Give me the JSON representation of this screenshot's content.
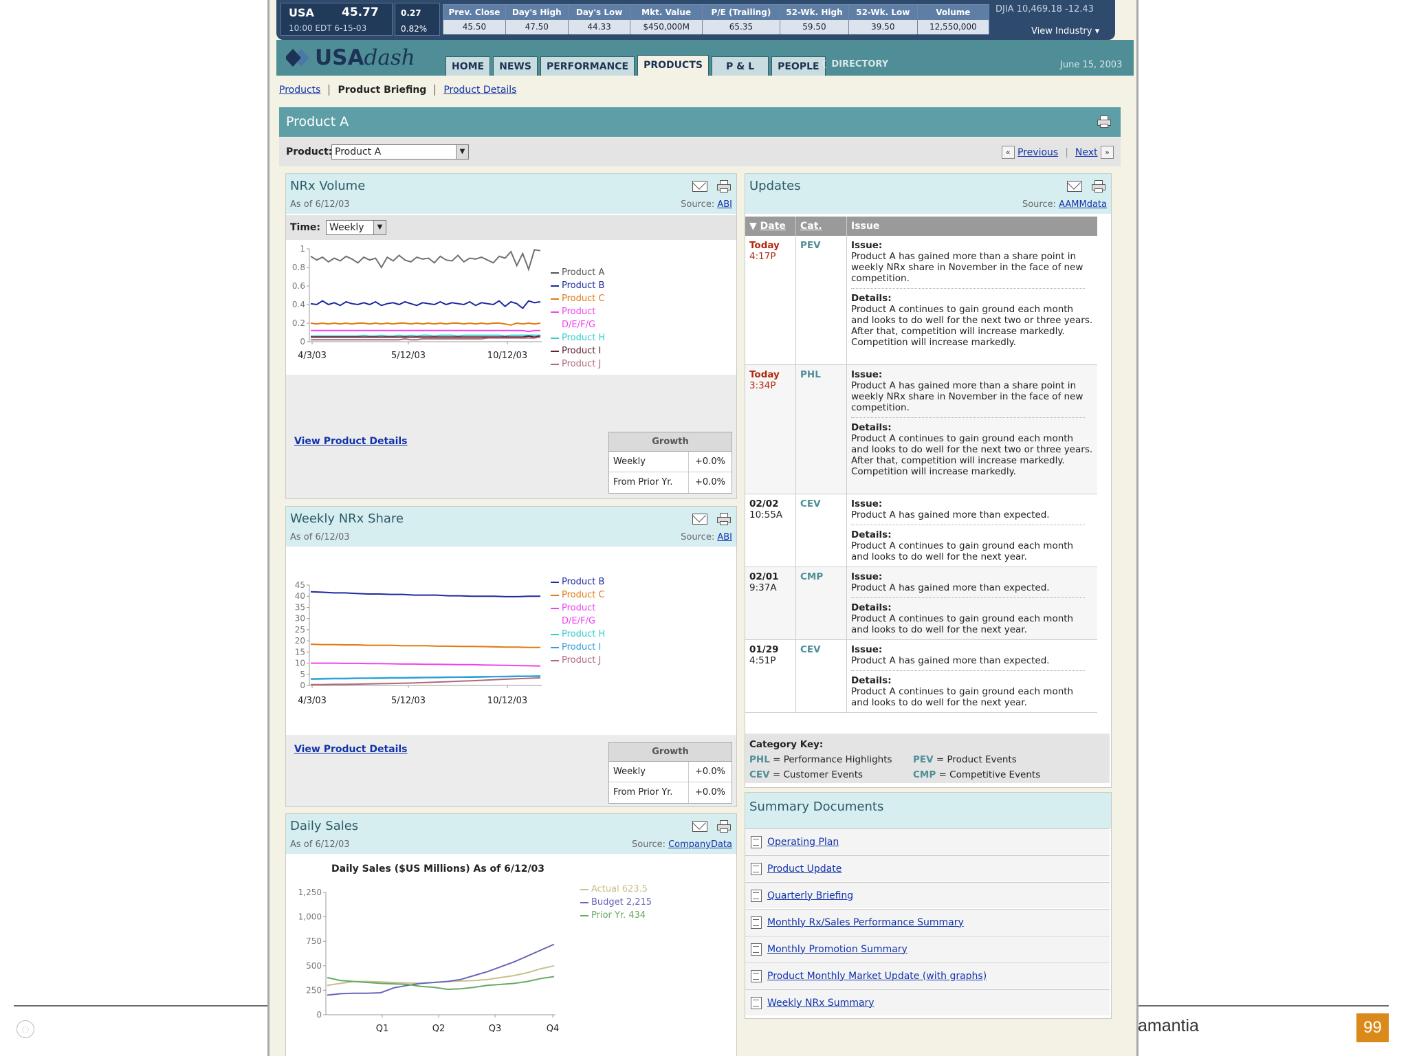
{
  "ticker": {
    "symbol": "USA",
    "price": "45.77",
    "change": "0.27",
    "change_pct": "0.82%",
    "time": "10:00 EDT 6-15-03",
    "stats": [
      {
        "label": "Prev. Close",
        "value": "45.50"
      },
      {
        "label": "Day's High",
        "value": "47.50"
      },
      {
        "label": "Day's Low",
        "value": "44.33"
      },
      {
        "label": "Mkt. Value",
        "value": "$450,000M"
      },
      {
        "label": "P/E (Trailing)",
        "value": "65.35"
      },
      {
        "label": "52-Wk. High",
        "value": "59.50"
      },
      {
        "label": "52-Wk. Low",
        "value": "39.50"
      },
      {
        "label": "Volume",
        "value": "12,550,000"
      }
    ],
    "djia": "DJIA  10,469.18  -12.43",
    "view_industry": "View Industry ▾"
  },
  "nav": {
    "logo_bold": "USA",
    "logo_italic": "dash",
    "tabs": [
      "HOME",
      "NEWS",
      "PERFORMANCE",
      "PRODUCTS",
      "P & L",
      "PEOPLE"
    ],
    "active_tab": "PRODUCTS",
    "directory": "❨ DIRECTORY",
    "date": "June 15, 2003"
  },
  "breadcrumbs": {
    "products": "Products",
    "briefing": "Product Briefing",
    "details": "Product Details"
  },
  "product": {
    "title": "Product A",
    "selector_label": "Product:",
    "selected": "Product A",
    "previous": "Previous",
    "next": "Next"
  },
  "nrx_volume": {
    "title": "NRx Volume",
    "as_of": "As of 6/12/03",
    "source_label": "Source:",
    "source": "ABI",
    "time_label": "Time:",
    "time_value": "Weekly",
    "view_link": "View Product Details",
    "growth_header": "Growth",
    "growth_weekly_label": "Weekly",
    "growth_weekly": "+0.0%",
    "growth_prior_label": "From Prior Yr.",
    "growth_prior": "+0.0%"
  },
  "weekly_share": {
    "title": "Weekly NRx Share",
    "as_of": "As of 6/12/03",
    "source_label": "Source:",
    "source": "ABI",
    "view_link": "View Product Details",
    "growth_header": "Growth",
    "growth_weekly_label": "Weekly",
    "growth_weekly": "+0.0%",
    "growth_prior_label": "From Prior Yr.",
    "growth_prior": "+0.0%"
  },
  "daily_sales": {
    "title": "Daily Sales",
    "as_of": "As of 6/12/03",
    "source_label": "Source:",
    "source": "CompanyData"
  },
  "updates": {
    "title": "Updates",
    "source_label": "Source:",
    "source": "AAMMdata",
    "col_date": "Date",
    "col_cat": "Cat.",
    "col_issue": "Issue",
    "issue_label": "Issue:",
    "details_label": "Details:",
    "rows": [
      {
        "d1": "Today",
        "d2": "4:17P",
        "red": true,
        "cat": "PEV",
        "issue": "Product A has gained more than a share point in weekly NRx share in November in the face of new competition.",
        "details": "Product A continues to gain ground each month and looks to do well for the next two or three years. After that, competition will increase markedly. Competition will increase markedly."
      },
      {
        "d1": "Today",
        "d2": "3:34P",
        "red": true,
        "cat": "PHL",
        "issue": "Product A has gained more than a share point in weekly NRx share in November in the face of new competition.",
        "details": "Product A continues to gain ground each month and looks to do well for the next two or three years. After that, competition will increase markedly. Competition will increase markedly."
      },
      {
        "d1": "02/02",
        "d2": "10:55A",
        "red": false,
        "cat": "CEV",
        "issue": "Product A has gained more than expected.",
        "details": "Product A continues to gain ground each month and looks to do well for the next year."
      },
      {
        "d1": "02/01",
        "d2": "9:37A",
        "red": false,
        "cat": "CMP",
        "issue": "Product A has gained more than expected.",
        "details": "Product A continues to gain ground each month and looks to do well for the next year."
      },
      {
        "d1": "01/29",
        "d2": "4:51P",
        "red": false,
        "cat": "CEV",
        "issue": "Product A has gained more than expected.",
        "details": "Product A continues to gain ground each month and looks to do well for the next year."
      }
    ],
    "category_key_title": "Category Key:",
    "keys": [
      {
        "code": "PHL",
        "label": "= Performance Highlights"
      },
      {
        "code": "PEV",
        "label": "= Product Events"
      },
      {
        "code": "CEV",
        "label": "= Customer Events"
      },
      {
        "code": "CMP",
        "label": "= Competitive Events"
      }
    ]
  },
  "summary_docs": {
    "title": "Summary Documents",
    "items": [
      "Operating Plan",
      "Product Update",
      "Quarterly Briefing",
      "Monthly Rx/Sales Performance Summary",
      "Monthly Promotion Summary",
      "Product Monthly Market Update (with graphs)",
      "Weekly NRx Summary"
    ]
  },
  "slide_footer": {
    "text": "amantia",
    "page": "99"
  },
  "chart_data": [
    {
      "type": "line",
      "title": "",
      "x_tick_labels": [
        "4/3/03",
        "5/12/03",
        "10/12/03"
      ],
      "ylim": [
        0,
        1
      ],
      "y_ticks": [
        "0",
        "0.2",
        "0.4",
        "0.6",
        "0.8",
        "1"
      ],
      "series": [
        {
          "name": "Product A",
          "color": "#707070",
          "values": [
            0.92,
            0.88,
            0.91,
            0.86,
            0.9,
            0.87,
            0.92,
            0.89,
            0.85,
            0.91,
            0.88,
            0.9,
            0.8,
            0.91,
            0.87,
            0.93,
            0.88,
            0.86,
            0.91,
            0.89,
            0.9,
            0.85,
            0.92,
            0.88,
            0.87,
            0.93,
            0.86,
            0.9,
            0.89,
            0.91,
            0.88,
            0.85,
            0.92,
            0.9,
            0.97,
            0.82,
            0.95,
            0.78,
            0.99,
            0.98
          ]
        },
        {
          "name": "Product B",
          "color": "#1a2aa0",
          "values": [
            0.41,
            0.4,
            0.44,
            0.4,
            0.42,
            0.39,
            0.43,
            0.41,
            0.4,
            0.42,
            0.4,
            0.43,
            0.39,
            0.41,
            0.42,
            0.4,
            0.43,
            0.41,
            0.39,
            0.42,
            0.41,
            0.4,
            0.43,
            0.4,
            0.42,
            0.41,
            0.4,
            0.43,
            0.39,
            0.42,
            0.41,
            0.4,
            0.44,
            0.38,
            0.43,
            0.41,
            0.36,
            0.44,
            0.42,
            0.43
          ]
        },
        {
          "name": "Product C",
          "color": "#e07a10",
          "values": [
            0.2,
            0.19,
            0.2,
            0.19,
            0.2,
            0.19,
            0.2,
            0.19,
            0.2,
            0.2,
            0.19,
            0.2,
            0.19,
            0.2,
            0.19,
            0.2,
            0.2,
            0.19,
            0.2,
            0.19,
            0.2,
            0.19,
            0.2,
            0.19,
            0.2,
            0.2,
            0.19,
            0.2,
            0.19,
            0.2,
            0.19,
            0.2,
            0.2,
            0.19,
            0.18,
            0.2,
            0.19,
            0.2,
            0.19,
            0.2
          ]
        },
        {
          "name": "Product D/E/F/G",
          "color": "#ee44ee",
          "values": [
            0.12,
            0.12,
            0.12,
            0.12,
            0.12,
            0.12,
            0.12,
            0.12,
            0.12,
            0.12,
            0.12,
            0.12,
            0.12,
            0.12,
            0.12,
            0.12,
            0.12,
            0.12,
            0.12,
            0.12,
            0.12,
            0.12,
            0.12,
            0.12,
            0.12,
            0.12,
            0.12,
            0.12,
            0.12,
            0.12,
            0.12,
            0.12,
            0.12,
            0.12,
            0.12,
            0.12,
            0.12,
            0.11,
            0.12,
            0.12
          ]
        },
        {
          "name": "Product H",
          "color": "#33cccc",
          "values": [
            0.06,
            0.06,
            0.06,
            0.06,
            0.06,
            0.06,
            0.06,
            0.06,
            0.06,
            0.07,
            0.06,
            0.06,
            0.07,
            0.06,
            0.06,
            0.07,
            0.06,
            0.07,
            0.06,
            0.07,
            0.07,
            0.06,
            0.07,
            0.07,
            0.07,
            0.06,
            0.07,
            0.07,
            0.07,
            0.07,
            0.07,
            0.07,
            0.07,
            0.06,
            0.07,
            0.07,
            0.07,
            0.07,
            0.07,
            0.07
          ]
        },
        {
          "name": "Product I",
          "color": "#602030",
          "values": [
            0.05,
            0.05,
            0.05,
            0.05,
            0.05,
            0.05,
            0.05,
            0.05,
            0.05,
            0.05,
            0.05,
            0.05,
            0.05,
            0.05,
            0.05,
            0.05,
            0.05,
            0.05,
            0.05,
            0.05,
            0.05,
            0.05,
            0.05,
            0.05,
            0.05,
            0.05,
            0.05,
            0.05,
            0.05,
            0.05,
            0.05,
            0.05,
            0.05,
            0.05,
            0.05,
            0.05,
            0.05,
            0.06,
            0.05,
            0.06
          ]
        },
        {
          "name": "Product J",
          "color": "#b06878",
          "values": [
            0.02,
            0.02,
            0.02,
            0.02,
            0.02,
            0.02,
            0.02,
            0.02,
            0.02,
            0.02,
            0.02,
            0.02,
            0.02,
            0.02,
            0.02,
            0.02,
            0.03,
            0.02,
            0.02,
            0.03,
            0.03,
            0.03,
            0.03,
            0.03,
            0.03,
            0.03,
            0.03,
            0.03,
            0.03,
            0.03,
            0.04,
            0.04,
            0.04,
            0.04,
            0.04,
            0.04,
            0.04,
            0.04,
            0.04,
            0.05
          ]
        }
      ]
    },
    {
      "type": "line",
      "title": "",
      "x_tick_labels": [
        "4/3/03",
        "5/12/03",
        "10/12/03"
      ],
      "ylim": [
        0,
        45
      ],
      "y_ticks": [
        "0",
        "5",
        "10",
        "15",
        "20",
        "25",
        "30",
        "35",
        "40",
        "45"
      ],
      "series": [
        {
          "name": "Product B",
          "color": "#1a2aa0",
          "values": [
            42,
            41.8,
            41.5,
            41.5,
            41.2,
            41,
            41,
            40.8,
            40.8,
            40.5,
            40.5,
            40.5,
            40.2,
            40.2,
            40,
            40,
            40,
            39.8,
            39.8,
            40,
            40
          ]
        },
        {
          "name": "Product C",
          "color": "#e07a10",
          "values": [
            18.5,
            18.3,
            18.3,
            18.2,
            18.2,
            18,
            18,
            18,
            17.8,
            17.8,
            17.8,
            17.6,
            17.6,
            17.5,
            17.5,
            17.4,
            17.3,
            17.2,
            17.2,
            17,
            17
          ]
        },
        {
          "name": "Product D/E/F/G",
          "color": "#ee44ee",
          "values": [
            10,
            10,
            10,
            9.9,
            9.9,
            9.8,
            9.8,
            9.7,
            9.6,
            9.6,
            9.5,
            9.5,
            9.4,
            9.3,
            9.3,
            9.2,
            9.1,
            9,
            8.9,
            8.8,
            8.7
          ]
        },
        {
          "name": "Product H",
          "color": "#33cccc",
          "values": [
            3,
            3.1,
            3.2,
            3.2,
            3.3,
            3.3,
            3.4,
            3.5,
            3.5,
            3.6,
            3.6,
            3.7,
            3.8,
            3.8,
            3.9,
            4,
            4,
            4.1,
            4.2,
            4.2,
            4.3
          ]
        },
        {
          "name": "Product I",
          "color": "#3399dd",
          "values": [
            2.8,
            2.9,
            3,
            3,
            3.1,
            3.2,
            3.2,
            3.3,
            3.3,
            3.4,
            3.5,
            3.5,
            3.6,
            3.7,
            3.7,
            3.8,
            3.9,
            3.9,
            4,
            4.1,
            4.1
          ]
        },
        {
          "name": "Product J",
          "color": "#b06878",
          "values": [
            0.4,
            0.4,
            0.5,
            0.5,
            0.6,
            0.7,
            0.8,
            0.9,
            1,
            1.1,
            1.3,
            1.5,
            1.7,
            1.9,
            2.1,
            2.3,
            2.6,
            2.8,
            3,
            3.2,
            3.4
          ]
        }
      ]
    },
    {
      "type": "line",
      "title": "Daily Sales ($US Millions) As of 6/12/03",
      "x_tick_labels": [
        "Q1",
        "Q2",
        "Q3",
        "Q4"
      ],
      "ylim": [
        0,
        1250
      ],
      "y_ticks": [
        "0",
        "250",
        "500",
        "750",
        "1,000",
        "1,250"
      ],
      "series": [
        {
          "name": "Actual 623.5",
          "color": "#c9c08a",
          "values": [
            300,
            320,
            340,
            340,
            335,
            330,
            325,
            320,
            330,
            340,
            345,
            350,
            360,
            380,
            400,
            430,
            470,
            500
          ]
        },
        {
          "name": "Budget  2,215",
          "color": "#6666bb",
          "values": [
            200,
            215,
            220,
            220,
            225,
            275,
            300,
            320,
            330,
            340,
            360,
            400,
            440,
            490,
            540,
            600,
            660,
            720
          ]
        },
        {
          "name": "Prior Yr. 434",
          "color": "#66aa66",
          "values": [
            380,
            350,
            340,
            330,
            320,
            315,
            310,
            290,
            280,
            260,
            265,
            280,
            300,
            310,
            320,
            340,
            370,
            390
          ]
        }
      ]
    }
  ]
}
